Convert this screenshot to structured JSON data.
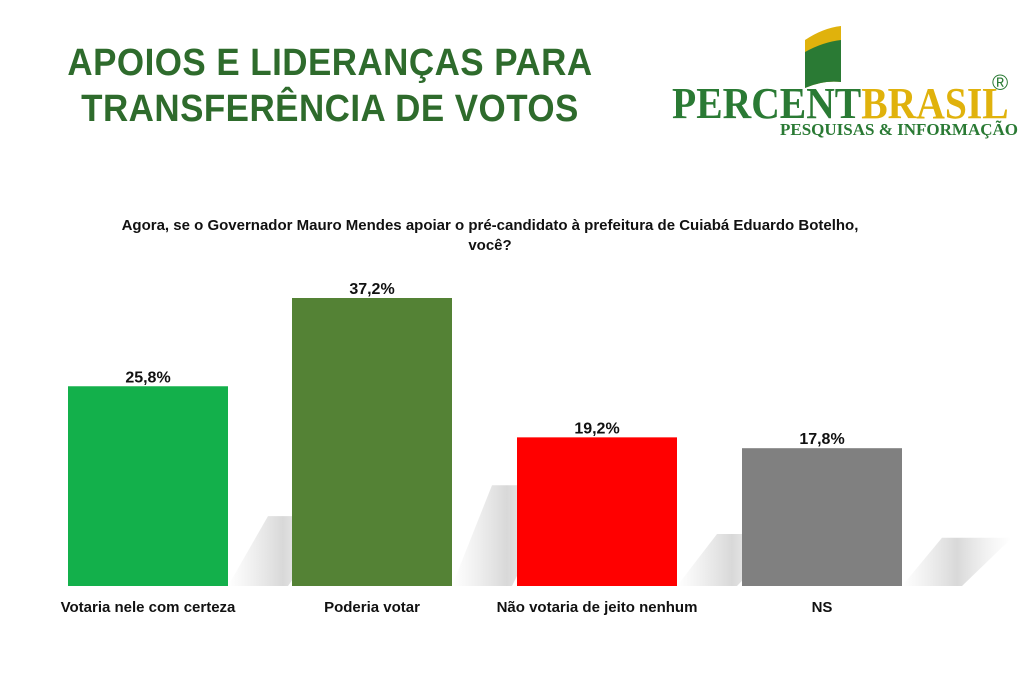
{
  "header": {
    "title_line1": "APOIOS E LIDERANÇAS PARA",
    "title_line2": "TRANSFERÊNCIA DE VOTOS"
  },
  "logo": {
    "word_part1": "PERCENT",
    "word_part2": "BRASIL",
    "registered": "®",
    "tagline": "PESQUISAS & INFORMAÇÃO",
    "colors": {
      "green": "#2a7a34",
      "gold": "#e0b20c"
    }
  },
  "chart_data": {
    "type": "bar",
    "title": "Agora, se o Governador Mauro Mendes apoiar o pré-candidato à prefeitura de Cuiabá Eduardo Botelho, você?",
    "categories": [
      "Votaria nele com certeza",
      "Poderia votar",
      "Não votaria de jeito nenhum",
      "NS"
    ],
    "values": [
      25.8,
      37.2,
      19.2,
      17.8
    ],
    "value_labels": [
      "25,8%",
      "37,2%",
      "19,2%",
      "17,8%"
    ],
    "colors": [
      "#13b04b",
      "#548235",
      "#ff0000",
      "#808080"
    ],
    "ylim": [
      0,
      37.2
    ],
    "grid": false,
    "legend": "none"
  }
}
